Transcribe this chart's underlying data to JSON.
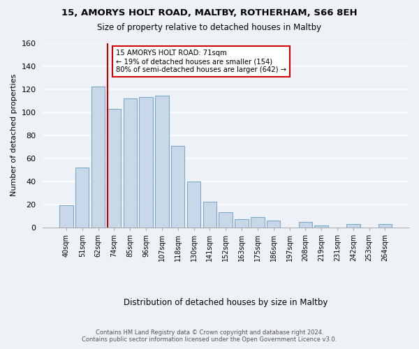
{
  "title1": "15, AMORYS HOLT ROAD, MALTBY, ROTHERHAM, S66 8EH",
  "title2": "Size of property relative to detached houses in Maltby",
  "xlabel": "Distribution of detached houses by size in Maltby",
  "ylabel": "Number of detached properties",
  "categories": [
    "40sqm",
    "51sqm",
    "62sqm",
    "74sqm",
    "85sqm",
    "96sqm",
    "107sqm",
    "118sqm",
    "130sqm",
    "141sqm",
    "152sqm",
    "163sqm",
    "175sqm",
    "186sqm",
    "197sqm",
    "208sqm",
    "219sqm",
    "231sqm",
    "242sqm",
    "253sqm",
    "264sqm"
  ],
  "values": [
    19,
    52,
    122,
    103,
    112,
    113,
    114,
    71,
    40,
    22,
    13,
    7,
    9,
    6,
    0,
    5,
    2,
    0,
    3,
    0,
    3
  ],
  "bar_color": "#c8d8e8",
  "bar_edge_color": "#7aaac8",
  "vline_x": 2.57,
  "vline_color": "#cc0000",
  "annotation_title": "15 AMORYS HOLT ROAD: 71sqm",
  "annotation_line1": "← 19% of detached houses are smaller (154)",
  "annotation_line2": "80% of semi-detached houses are larger (642) →",
  "annotation_box_edge": "#cc0000",
  "ylim": [
    0,
    160
  ],
  "yticks": [
    0,
    20,
    40,
    60,
    80,
    100,
    120,
    140,
    160
  ],
  "footer1": "Contains HM Land Registry data © Crown copyright and database right 2024.",
  "footer2": "Contains public sector information licensed under the Open Government Licence v3.0.",
  "background_color": "#eef2f7",
  "grid_color": "#ffffff"
}
